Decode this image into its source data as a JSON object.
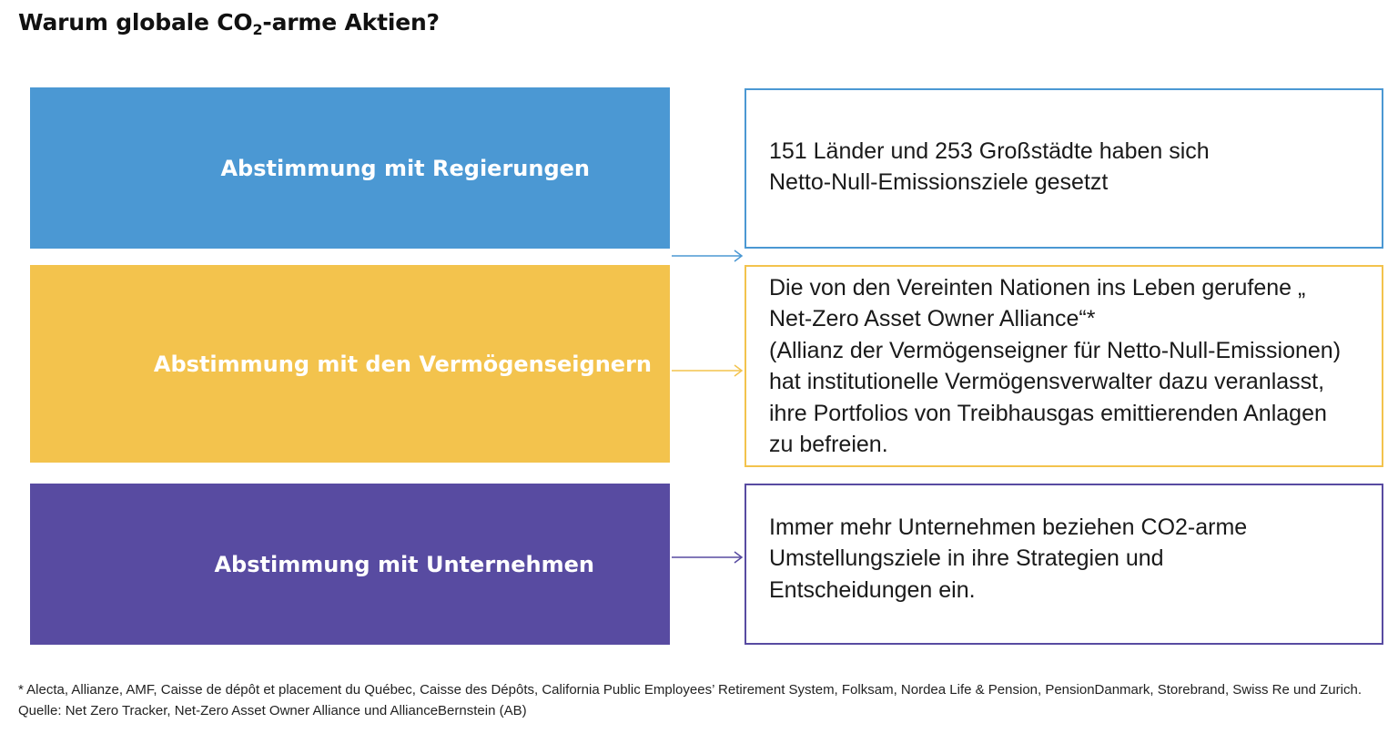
{
  "title": {
    "main_before": "Warum globale CO",
    "subscript": "2",
    "main_after": "-arme Aktien?"
  },
  "rows": [
    {
      "label": "Abstimmung mit Regierungen",
      "description": "151 Länder und 253 Großstädte haben sich\nNetto-Null-Emissionsziele gesetzt",
      "color": "#4b98d3"
    },
    {
      "label": "Abstimmung mit den Vermögenseignern",
      "description": "Die von den Vereinten Nationen ins Leben gerufene „\nNet-Zero Asset Owner Alliance“*\n(Allianz der Vermögenseigner für Netto-Null-Emissionen)\nhat institutionelle Vermögensverwalter dazu veranlasst,\nihre Portfolios von Treibhausgas emittierenden Anlagen\nzu befreien.",
      "color": "#f3c34d"
    },
    {
      "label": "Abstimmung mit Unternehmen",
      "description": "Immer mehr Unternehmen beziehen CO2-arme\nUmstellungsziele in ihre Strategien und\nEntscheidungen ein.",
      "color": "#584ba1"
    }
  ],
  "footnotes": {
    "note": "* Alecta, Allianze, AMF, Caisse de dépôt et placement du Québec, Caisse des Dépôts, California Public Employees’ Retirement System, Folksam, Nordea Life & Pension, PensionDanmark, Storebrand, Swiss Re und Zurich.",
    "source": "Quelle: Net Zero Tracker, Net-Zero Asset Owner Alliance und AllianceBernstein (AB)"
  }
}
